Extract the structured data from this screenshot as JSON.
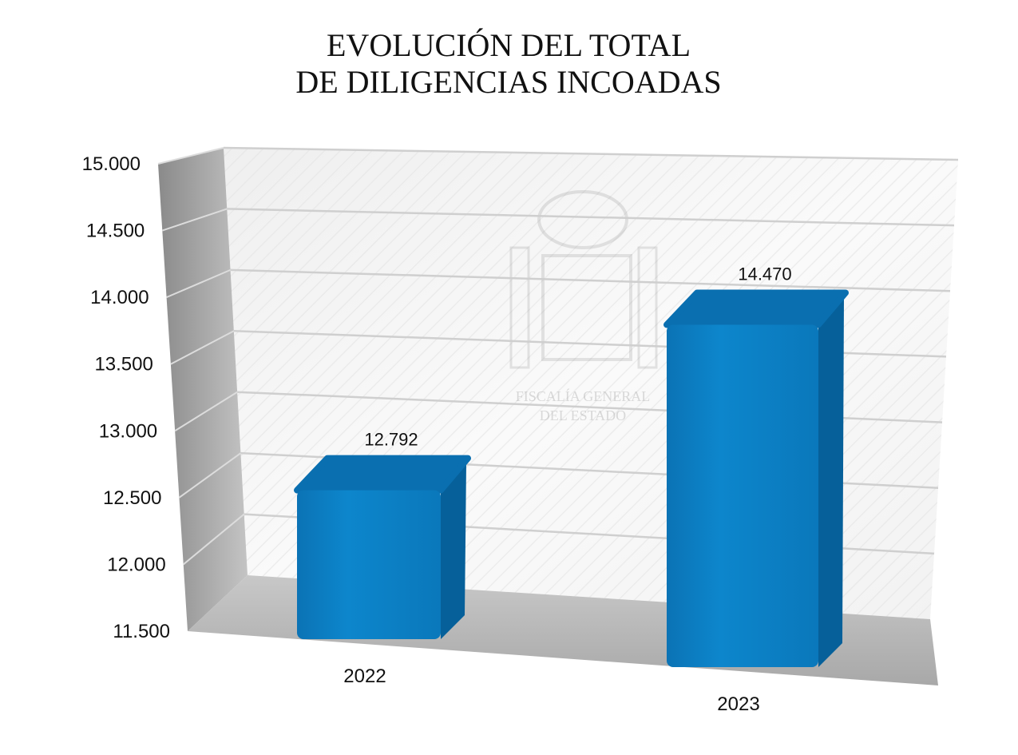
{
  "chart_data": {
    "type": "bar",
    "title": [
      "EVOLUCIÓN DEL TOTAL",
      "DE DILIGENCIAS INCOADAS"
    ],
    "categories": [
      "2022",
      "2023"
    ],
    "values": [
      12792,
      14470
    ],
    "data_labels": [
      "12.792",
      "14.470"
    ],
    "ylim": [
      11500,
      15000
    ],
    "yticks": [
      11500,
      12000,
      12500,
      13000,
      13500,
      14000,
      14500,
      15000
    ],
    "ytick_labels": [
      "11.500",
      "12.000",
      "12.500",
      "13.000",
      "13.500",
      "14.000",
      "14.500",
      "15.000"
    ],
    "grid": true,
    "style": "3d-column",
    "bar_color": "#0a7fc4",
    "bar_top_color": "#0a6fb0",
    "bar_side_color": "#06609a"
  },
  "watermark": {
    "lines": [
      "FISCALÍA GENERAL",
      "DEL ESTADO"
    ]
  }
}
